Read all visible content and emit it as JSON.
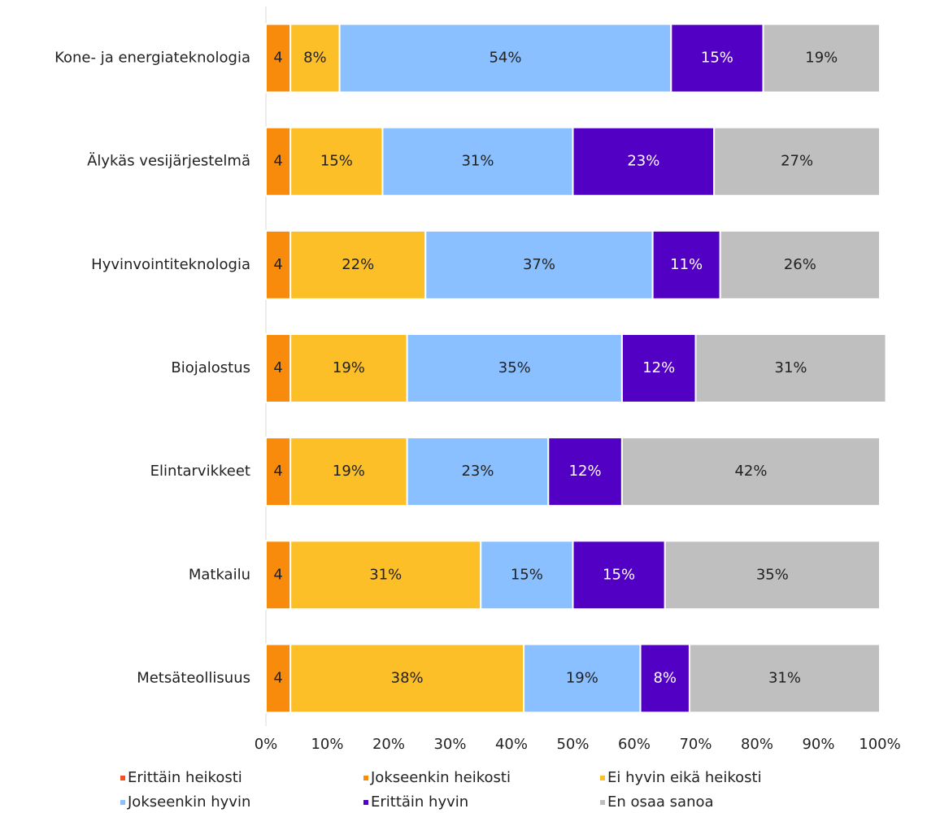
{
  "chart_data": {
    "type": "stacked-barh",
    "categories": [
      "Kone- ja energiateknologia",
      "Älykäs vesijärjestelmä",
      "Hyvinvointiteknologia",
      "Biojalostus",
      "Elintarvikkeet",
      "Matkailu",
      "Metsäteollisuus"
    ],
    "series": [
      {
        "name": "Erittäin heikosti",
        "color": "#f4511e",
        "values": [
          0,
          0,
          0,
          0,
          0,
          0,
          0
        ]
      },
      {
        "name": "Jokseenkin heikosti",
        "color": "#f98b0c",
        "values": [
          4,
          4,
          4,
          4,
          4,
          4,
          4
        ]
      },
      {
        "name": "Ei hyvin eikä heikosti",
        "color": "#fcbf28",
        "values": [
          8,
          15,
          22,
          19,
          19,
          31,
          38
        ],
        "value_labels": [
          "8%",
          "15%",
          "22%",
          "19%",
          "19%",
          "31%",
          "38%"
        ]
      },
      {
        "name": "Jokseenkin hyvin",
        "color": "#8ac0ff",
        "values": [
          54,
          31,
          37,
          35,
          23,
          15,
          19
        ],
        "value_labels": [
          "54%",
          "31%",
          "37%",
          "35%",
          "23%",
          "15%",
          "19%"
        ]
      },
      {
        "name": "Erittäin hyvin",
        "color": "#5200c4",
        "values": [
          15,
          23,
          11,
          12,
          12,
          15,
          8
        ],
        "value_labels": [
          "15%",
          "23%",
          "11%",
          "12%",
          "12%",
          "15%",
          "8%"
        ]
      },
      {
        "name": "En osaa sanoa",
        "color": "#bfbfbf",
        "values": [
          19,
          27,
          26,
          31,
          42,
          35,
          31
        ],
        "value_labels": [
          "19%",
          "27%",
          "26%",
          "31%",
          "42%",
          "35%",
          "31%"
        ]
      }
    ],
    "xlim": [
      0,
      100
    ],
    "xticks": [
      {
        "value": 0,
        "label": "0%"
      },
      {
        "value": 10,
        "label": "10%"
      },
      {
        "value": 20,
        "label": "20%"
      },
      {
        "value": 30,
        "label": "30%"
      },
      {
        "value": 40,
        "label": "40%"
      },
      {
        "value": 50,
        "label": "50%"
      },
      {
        "value": 60,
        "label": "60%"
      },
      {
        "value": 70,
        "label": "70%"
      },
      {
        "value": 80,
        "label": "80%"
      },
      {
        "value": 90,
        "label": "90%"
      },
      {
        "value": 100,
        "label": "100%"
      }
    ],
    "legend": "bottom"
  }
}
